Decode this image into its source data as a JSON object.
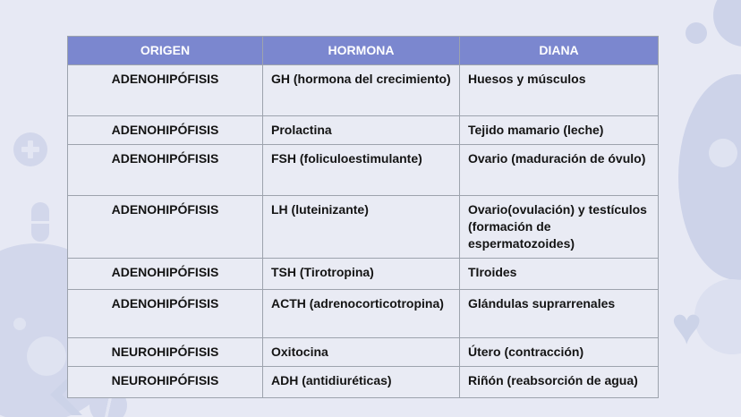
{
  "slide": {
    "background_color": "#e7e9f4",
    "accent_color": "#7b87cf",
    "decoration_color": "#d2d7eb",
    "heart_glyph": "♥",
    "decorations": [
      "plus-circle-icon",
      "pill-icon",
      "tablet-icon",
      "heart-icon",
      "circle-blobs"
    ]
  },
  "table": {
    "header_bg": "#7b87cf",
    "header_text_color": "#ffffff",
    "cell_bg": "#e9ebf4",
    "border_color": "#9da3ad",
    "headers": [
      "ORIGEN",
      "HORMONA",
      "DIANA"
    ],
    "rows": [
      {
        "origen": "ADENOHIPÓFISIS",
        "hormona": "GH (hormona del crecimiento)",
        "diana": "Huesos y músculos"
      },
      {
        "origen": "ADENOHIPÓFISIS",
        "hormona": "Prolactina",
        "diana": "Tejido mamario (leche)"
      },
      {
        "origen": "ADENOHIPÓFISIS",
        "hormona": "FSH (foliculoestimulante)",
        "diana": "Ovario (maduración de óvulo)"
      },
      {
        "origen": "ADENOHIPÓFISIS",
        "hormona": "LH (luteinizante)",
        "diana": "Ovario(ovulación) y testículos (formación de espermatozoides)"
      },
      {
        "origen": "ADENOHIPÓFISIS",
        "hormona": "TSH (Tirotropina)",
        "diana": "TIroides"
      },
      {
        "origen": "ADENOHIPÓFISIS",
        "hormona": "ACTH (adrenocorticotropina)",
        "diana": "Glándulas suprarrenales"
      },
      {
        "origen": "NEUROHIPÓFISIS",
        "hormona": "Oxitocina",
        "diana": "Útero (contracción)"
      },
      {
        "origen": "NEUROHIPÓFISIS",
        "hormona": "ADH (antidiuréticas)",
        "diana": "Riñón (reabsorción de agua)"
      }
    ]
  }
}
